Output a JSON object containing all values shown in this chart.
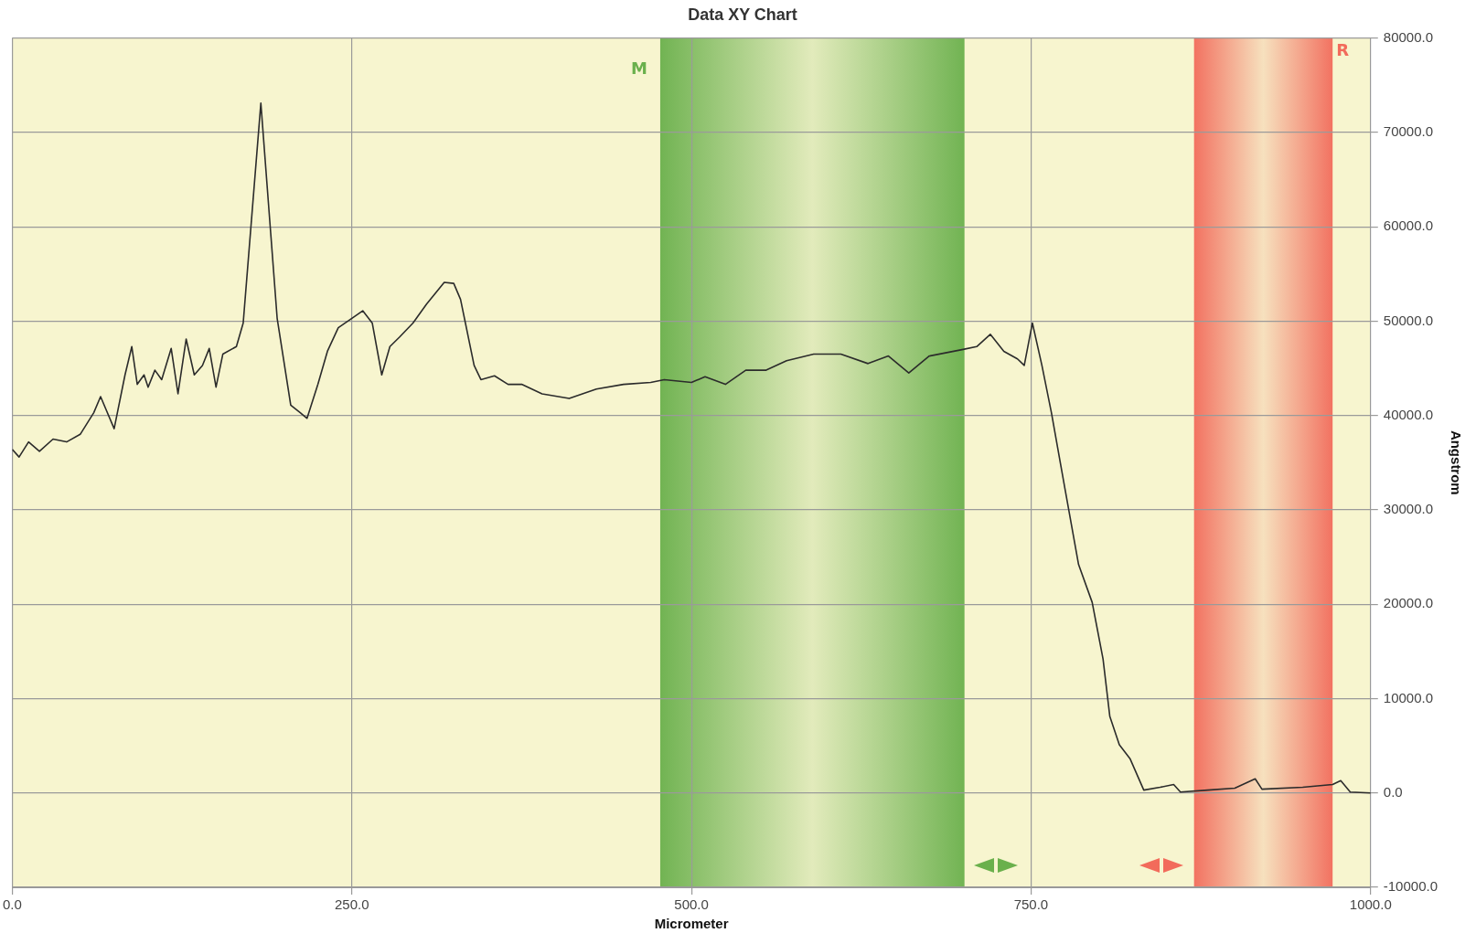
{
  "chart_data": {
    "type": "line",
    "title": "Data XY Chart",
    "xlabel": "Micrometer",
    "ylabel": "Angstrom",
    "x": [
      0,
      5,
      12,
      20,
      30,
      40,
      50,
      60,
      65,
      75,
      83,
      88,
      92,
      97,
      100,
      105,
      110,
      117,
      122,
      128,
      134,
      140,
      145,
      150,
      155,
      165,
      170,
      183,
      195,
      205,
      212,
      217,
      225,
      232,
      240,
      250,
      258,
      265,
      272,
      278,
      285,
      295,
      305,
      318,
      325,
      330,
      340,
      345,
      355,
      365,
      375,
      390,
      410,
      430,
      450,
      470,
      480,
      500,
      510,
      525,
      540,
      555,
      570,
      590,
      610,
      630,
      645,
      660,
      675,
      700,
      710,
      720,
      730,
      740,
      745,
      751,
      758,
      765,
      775,
      785,
      795,
      803,
      808,
      815,
      823,
      833,
      845,
      855,
      860,
      880,
      900,
      915,
      920,
      950,
      972,
      978,
      985,
      1000
    ],
    "series": [
      {
        "color": "#2b2b2b",
        "values": [
          36400,
          35600,
          37200,
          36200,
          37500,
          37200,
          38000,
          40300,
          42000,
          38600,
          44300,
          47300,
          43300,
          44300,
          43000,
          44800,
          43800,
          47100,
          42300,
          48100,
          44300,
          45300,
          47100,
          43000,
          46500,
          47300,
          49800,
          73100,
          50300,
          41100,
          40300,
          39700,
          43300,
          46800,
          49300,
          50300,
          51100,
          49800,
          44300,
          47300,
          48300,
          49800,
          51800,
          54100,
          54000,
          52300,
          45300,
          43800,
          44200,
          43300,
          43300,
          42300,
          41800,
          42800,
          43300,
          43500,
          43800,
          43500,
          44100,
          43300,
          44800,
          44800,
          45800,
          46500,
          46500,
          45500,
          46300,
          44500,
          46300,
          47000,
          47300,
          48600,
          46800,
          46000,
          45300,
          49800,
          45300,
          40300,
          32200,
          24200,
          20200,
          14200,
          8100,
          5100,
          3600,
          300,
          600,
          900,
          100,
          300,
          500,
          1500,
          400,
          600,
          900,
          1300,
          100,
          0
        ]
      }
    ],
    "xlim": [
      0,
      1000
    ],
    "xticks": [
      {
        "value": 0,
        "label": "0.0"
      },
      {
        "value": 250,
        "label": "250.0"
      },
      {
        "value": 500,
        "label": "500.0"
      },
      {
        "value": 750,
        "label": "750.0"
      },
      {
        "value": 1000,
        "label": "1000.0"
      }
    ],
    "ylim": [
      -10000,
      80000
    ],
    "yticks": [
      {
        "value": -10000,
        "label": "-10000.0"
      },
      {
        "value": 0,
        "label": "0.0"
      },
      {
        "value": 10000,
        "label": "10000.0"
      },
      {
        "value": 20000,
        "label": "20000.0"
      },
      {
        "value": 30000,
        "label": "30000.0"
      },
      {
        "value": 40000,
        "label": "40000.0"
      },
      {
        "value": 50000,
        "label": "50000.0"
      },
      {
        "value": 60000,
        "label": "60000.0"
      },
      {
        "value": 70000,
        "label": "70000.0"
      },
      {
        "value": 80000,
        "label": "80000.0"
      }
    ],
    "bands": [
      {
        "axis": "x",
        "from": 477,
        "to": 701,
        "label": "M",
        "color": "#6ab04c"
      },
      {
        "axis": "x",
        "from": 870,
        "to": 972,
        "label": "R",
        "color": "#f26b5b"
      }
    ],
    "grid": true,
    "legend": false,
    "marker": "none",
    "line_style": "solid"
  }
}
